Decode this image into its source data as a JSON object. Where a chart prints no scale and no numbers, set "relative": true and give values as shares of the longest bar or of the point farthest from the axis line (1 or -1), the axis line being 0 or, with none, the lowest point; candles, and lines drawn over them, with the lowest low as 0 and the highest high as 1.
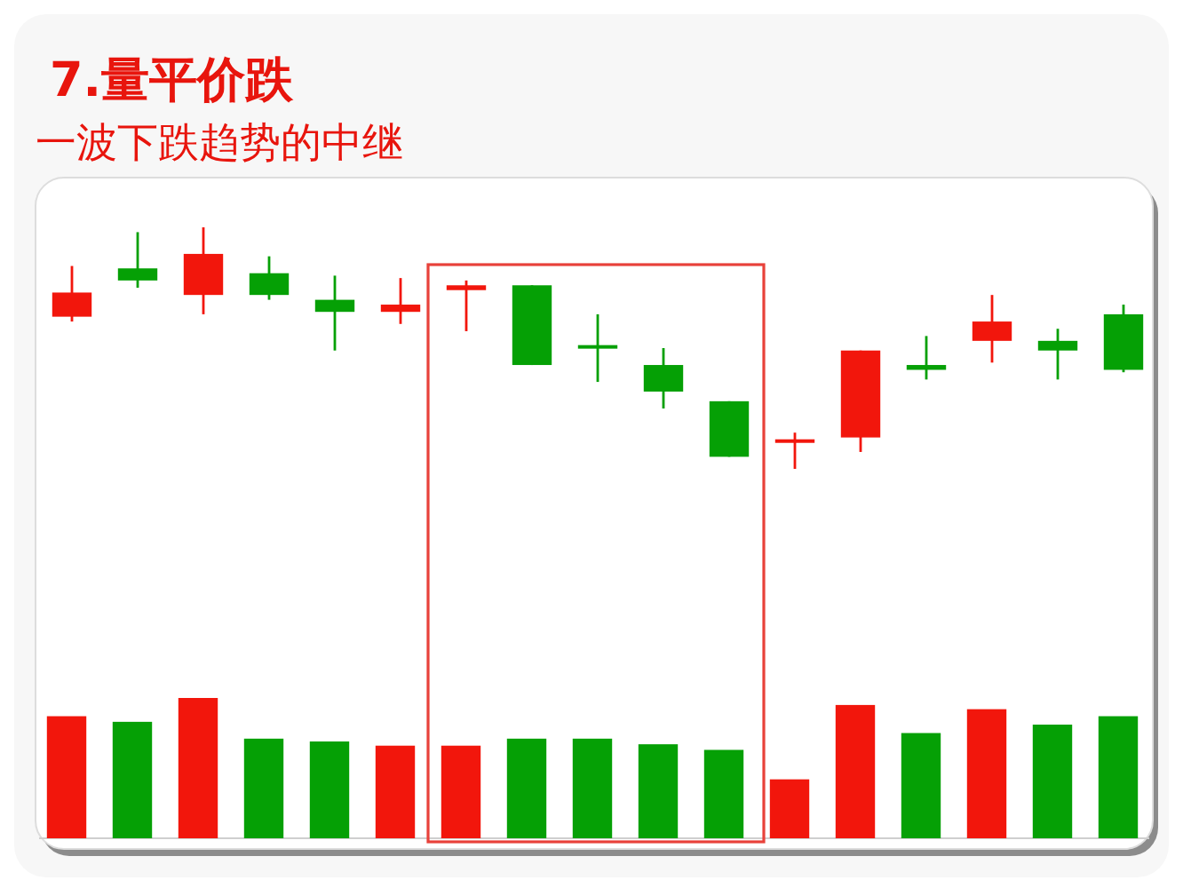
{
  "chart_data": [
    {
      "type": "candlestick",
      "title": "7.量平价跌",
      "subtitle": "一波下跌趋势的中继",
      "relative": true,
      "categories": [
        null,
        null,
        null,
        null,
        null,
        null,
        null,
        null,
        null,
        null,
        null,
        null,
        null,
        null,
        null,
        null,
        null
      ],
      "ohlc": [
        [
          0.63,
          0.84,
          0.61,
          0.73
        ],
        [
          0.83,
          0.98,
          0.75,
          0.78
        ],
        [
          0.72,
          1.0,
          0.64,
          0.89
        ],
        [
          0.81,
          0.88,
          0.7,
          0.72
        ],
        [
          0.7,
          0.8,
          0.49,
          0.65
        ],
        [
          0.65,
          0.79,
          0.6,
          0.68
        ],
        [
          0.74,
          0.78,
          0.57,
          0.76
        ],
        [
          0.76,
          0.76,
          0.43,
          0.43
        ],
        [
          0.51,
          0.64,
          0.36,
          0.5
        ],
        [
          0.43,
          0.5,
          0.25,
          0.32
        ],
        [
          0.28,
          0.28,
          0.05,
          0.05
        ],
        [
          0.11,
          0.15,
          0.0,
          0.12
        ],
        [
          0.13,
          0.49,
          0.07,
          0.49
        ],
        [
          0.43,
          0.55,
          0.37,
          0.41
        ],
        [
          0.53,
          0.72,
          0.44,
          0.61
        ],
        [
          0.53,
          0.58,
          0.37,
          0.49
        ],
        [
          0.64,
          0.68,
          0.4,
          0.41
        ]
      ],
      "colors": [
        "#f2160c",
        "#05a005",
        "#f2160c",
        "#05a005",
        "#05a005",
        "#f2160c",
        "#f2160c",
        "#05a005",
        "#05a005",
        "#05a005",
        "#05a005",
        "#f2160c",
        "#f2160c",
        "#05a005",
        "#f2160c",
        "#05a005",
        "#05a005"
      ]
    },
    {
      "type": "bar",
      "relative": true,
      "categories": [
        null,
        null,
        null,
        null,
        null,
        null,
        null,
        null,
        null,
        null,
        null,
        null,
        null,
        null,
        null,
        null,
        null
      ],
      "values": [
        0.87,
        0.83,
        1,
        0.71,
        0.69,
        0.66,
        0.66,
        0.71,
        0.71,
        0.67,
        0.63,
        0.42,
        0.95,
        0.75,
        0.92,
        0.81,
        0.87
      ],
      "colors": [
        "#f2160c",
        "#05a005",
        "#f2160c",
        "#05a005",
        "#05a005",
        "#f2160c",
        "#f2160c",
        "#05a005",
        "#05a005",
        "#05a005",
        "#05a005",
        "#f2160c",
        "#f2160c",
        "#05a005",
        "#f2160c",
        "#05a005",
        "#05a005"
      ]
    }
  ]
}
